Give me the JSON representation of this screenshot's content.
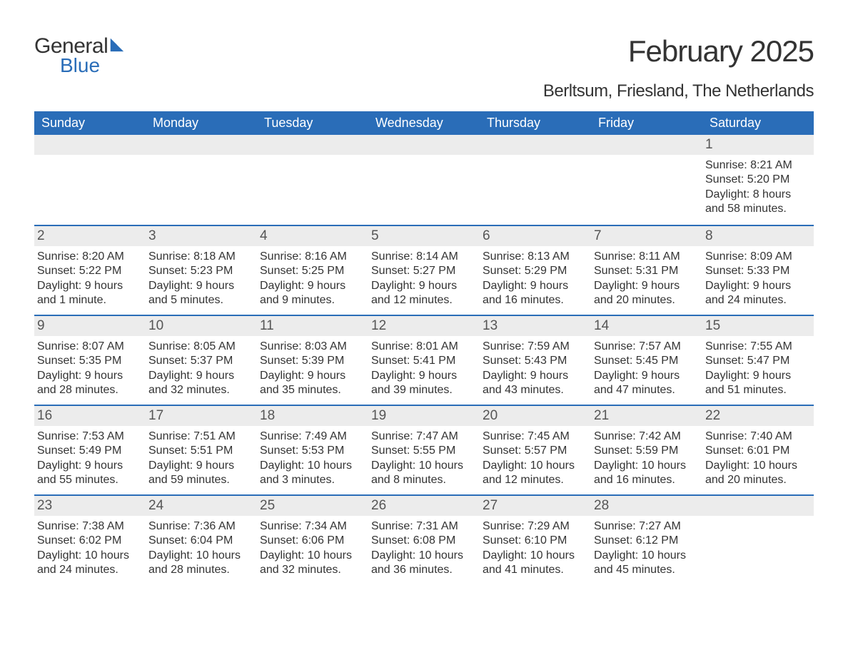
{
  "logo": {
    "text1": "General",
    "text2": "Blue",
    "sail_color": "#2a6db8"
  },
  "title": "February 2025",
  "location": "Berltsum, Friesland, The Netherlands",
  "header_bg": "#2a6db8",
  "daynum_bg": "#ececec",
  "border_color": "#2a6db8",
  "day_headers": [
    "Sunday",
    "Monday",
    "Tuesday",
    "Wednesday",
    "Thursday",
    "Friday",
    "Saturday"
  ],
  "weeks": [
    [
      {},
      {},
      {},
      {},
      {},
      {},
      {
        "n": "1",
        "sunrise": "8:21 AM",
        "sunset": "5:20 PM",
        "daylight": "8 hours and 58 minutes."
      }
    ],
    [
      {
        "n": "2",
        "sunrise": "8:20 AM",
        "sunset": "5:22 PM",
        "daylight": "9 hours and 1 minute."
      },
      {
        "n": "3",
        "sunrise": "8:18 AM",
        "sunset": "5:23 PM",
        "daylight": "9 hours and 5 minutes."
      },
      {
        "n": "4",
        "sunrise": "8:16 AM",
        "sunset": "5:25 PM",
        "daylight": "9 hours and 9 minutes."
      },
      {
        "n": "5",
        "sunrise": "8:14 AM",
        "sunset": "5:27 PM",
        "daylight": "9 hours and 12 minutes."
      },
      {
        "n": "6",
        "sunrise": "8:13 AM",
        "sunset": "5:29 PM",
        "daylight": "9 hours and 16 minutes."
      },
      {
        "n": "7",
        "sunrise": "8:11 AM",
        "sunset": "5:31 PM",
        "daylight": "9 hours and 20 minutes."
      },
      {
        "n": "8",
        "sunrise": "8:09 AM",
        "sunset": "5:33 PM",
        "daylight": "9 hours and 24 minutes."
      }
    ],
    [
      {
        "n": "9",
        "sunrise": "8:07 AM",
        "sunset": "5:35 PM",
        "daylight": "9 hours and 28 minutes."
      },
      {
        "n": "10",
        "sunrise": "8:05 AM",
        "sunset": "5:37 PM",
        "daylight": "9 hours and 32 minutes."
      },
      {
        "n": "11",
        "sunrise": "8:03 AM",
        "sunset": "5:39 PM",
        "daylight": "9 hours and 35 minutes."
      },
      {
        "n": "12",
        "sunrise": "8:01 AM",
        "sunset": "5:41 PM",
        "daylight": "9 hours and 39 minutes."
      },
      {
        "n": "13",
        "sunrise": "7:59 AM",
        "sunset": "5:43 PM",
        "daylight": "9 hours and 43 minutes."
      },
      {
        "n": "14",
        "sunrise": "7:57 AM",
        "sunset": "5:45 PM",
        "daylight": "9 hours and 47 minutes."
      },
      {
        "n": "15",
        "sunrise": "7:55 AM",
        "sunset": "5:47 PM",
        "daylight": "9 hours and 51 minutes."
      }
    ],
    [
      {
        "n": "16",
        "sunrise": "7:53 AM",
        "sunset": "5:49 PM",
        "daylight": "9 hours and 55 minutes."
      },
      {
        "n": "17",
        "sunrise": "7:51 AM",
        "sunset": "5:51 PM",
        "daylight": "9 hours and 59 minutes."
      },
      {
        "n": "18",
        "sunrise": "7:49 AM",
        "sunset": "5:53 PM",
        "daylight": "10 hours and 3 minutes."
      },
      {
        "n": "19",
        "sunrise": "7:47 AM",
        "sunset": "5:55 PM",
        "daylight": "10 hours and 8 minutes."
      },
      {
        "n": "20",
        "sunrise": "7:45 AM",
        "sunset": "5:57 PM",
        "daylight": "10 hours and 12 minutes."
      },
      {
        "n": "21",
        "sunrise": "7:42 AM",
        "sunset": "5:59 PM",
        "daylight": "10 hours and 16 minutes."
      },
      {
        "n": "22",
        "sunrise": "7:40 AM",
        "sunset": "6:01 PM",
        "daylight": "10 hours and 20 minutes."
      }
    ],
    [
      {
        "n": "23",
        "sunrise": "7:38 AM",
        "sunset": "6:02 PM",
        "daylight": "10 hours and 24 minutes."
      },
      {
        "n": "24",
        "sunrise": "7:36 AM",
        "sunset": "6:04 PM",
        "daylight": "10 hours and 28 minutes."
      },
      {
        "n": "25",
        "sunrise": "7:34 AM",
        "sunset": "6:06 PM",
        "daylight": "10 hours and 32 minutes."
      },
      {
        "n": "26",
        "sunrise": "7:31 AM",
        "sunset": "6:08 PM",
        "daylight": "10 hours and 36 minutes."
      },
      {
        "n": "27",
        "sunrise": "7:29 AM",
        "sunset": "6:10 PM",
        "daylight": "10 hours and 41 minutes."
      },
      {
        "n": "28",
        "sunrise": "7:27 AM",
        "sunset": "6:12 PM",
        "daylight": "10 hours and 45 minutes."
      },
      {}
    ]
  ],
  "labels": {
    "sunrise": "Sunrise: ",
    "sunset": "Sunset: ",
    "daylight": "Daylight: "
  }
}
